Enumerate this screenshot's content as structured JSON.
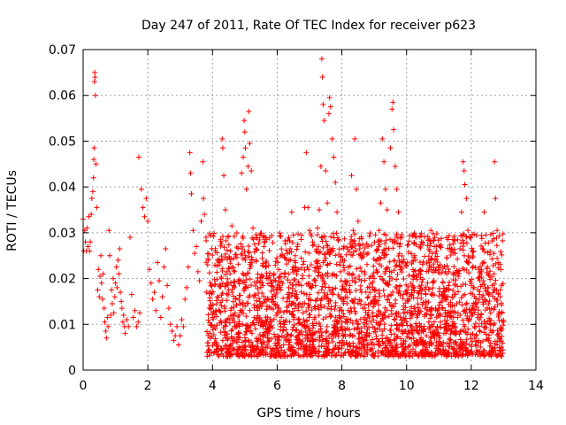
{
  "chart_data": {
    "type": "scatter",
    "title": "Day 247 of 2011, Rate Of TEC Index for receiver p623",
    "xlabel": "GPS time / hours",
    "ylabel": "ROTI / TECUs",
    "xlim": [
      0,
      14
    ],
    "ylim": [
      0,
      0.07
    ],
    "grid": true,
    "marker": "+",
    "color": "#ff0000",
    "xticks": [
      "0",
      "2",
      "4",
      "6",
      "8",
      "10",
      "12",
      "14"
    ],
    "yticks": [
      "0",
      "0.01",
      "0.02",
      "0.03",
      "0.04",
      "0.05",
      "0.06",
      "0.07"
    ],
    "x_range_of_points": [
      0.0,
      13.0
    ],
    "points": [
      [
        0.0,
        0.033
      ],
      [
        0.02,
        0.026
      ],
      [
        0.05,
        0.0305
      ],
      [
        0.07,
        0.028
      ],
      [
        0.1,
        0.026
      ],
      [
        0.12,
        0.031
      ],
      [
        0.15,
        0.027
      ],
      [
        0.17,
        0.0335
      ],
      [
        0.2,
        0.026
      ],
      [
        0.22,
        0.028
      ],
      [
        0.25,
        0.034
      ],
      [
        0.27,
        0.0375
      ],
      [
        0.3,
        0.039
      ],
      [
        0.32,
        0.042
      ],
      [
        0.33,
        0.046
      ],
      [
        0.34,
        0.0485
      ],
      [
        0.35,
        0.063
      ],
      [
        0.36,
        0.065
      ],
      [
        0.37,
        0.064
      ],
      [
        0.38,
        0.06
      ],
      [
        0.4,
        0.045
      ],
      [
        0.42,
        0.0355
      ],
      [
        0.45,
        0.0175
      ],
      [
        0.47,
        0.022
      ],
      [
        0.5,
        0.016
      ],
      [
        0.52,
        0.0205
      ],
      [
        0.55,
        0.025
      ],
      [
        0.57,
        0.019
      ],
      [
        0.6,
        0.0155
      ],
      [
        0.62,
        0.021
      ],
      [
        0.65,
        0.0135
      ],
      [
        0.67,
        0.0105
      ],
      [
        0.7,
        0.0085
      ],
      [
        0.72,
        0.007
      ],
      [
        0.75,
        0.0115
      ],
      [
        0.77,
        0.0095
      ],
      [
        0.8,
        0.0305
      ],
      [
        0.82,
        0.025
      ],
      [
        0.85,
        0.012
      ],
      [
        0.88,
        0.0175
      ],
      [
        0.9,
        0.0145
      ],
      [
        0.93,
        0.02
      ],
      [
        0.95,
        0.0125
      ],
      [
        0.98,
        0.016
      ],
      [
        1.0,
        0.019
      ],
      [
        1.03,
        0.0225
      ],
      [
        1.05,
        0.018
      ],
      [
        1.08,
        0.024
      ],
      [
        1.1,
        0.021
      ],
      [
        1.13,
        0.0265
      ],
      [
        1.15,
        0.017
      ],
      [
        1.18,
        0.015
      ],
      [
        1.2,
        0.0135
      ],
      [
        1.23,
        0.0105
      ],
      [
        1.25,
        0.012
      ],
      [
        1.28,
        0.0095
      ],
      [
        1.3,
        0.008
      ],
      [
        1.35,
        0.011
      ],
      [
        1.4,
        0.0095
      ],
      [
        1.45,
        0.029
      ],
      [
        1.5,
        0.0165
      ],
      [
        1.55,
        0.0115
      ],
      [
        1.6,
        0.013
      ],
      [
        1.65,
        0.0095
      ],
      [
        1.7,
        0.0105
      ],
      [
        1.72,
        0.0465
      ],
      [
        1.75,
        0.0125
      ],
      [
        1.8,
        0.0395
      ],
      [
        1.85,
        0.0355
      ],
      [
        1.9,
        0.0335
      ],
      [
        1.95,
        0.0375
      ],
      [
        2.0,
        0.0325
      ],
      [
        2.05,
        0.022
      ],
      [
        2.1,
        0.019
      ],
      [
        2.15,
        0.0155
      ],
      [
        2.2,
        0.017
      ],
      [
        2.25,
        0.013
      ],
      [
        2.3,
        0.0235
      ],
      [
        2.35,
        0.0195
      ],
      [
        2.4,
        0.0115
      ],
      [
        2.45,
        0.016
      ],
      [
        2.5,
        0.0225
      ],
      [
        2.55,
        0.0265
      ],
      [
        2.6,
        0.0185
      ],
      [
        2.65,
        0.0135
      ],
      [
        2.7,
        0.01
      ],
      [
        2.75,
        0.0085
      ],
      [
        2.8,
        0.0065
      ],
      [
        2.85,
        0.0075
      ],
      [
        2.9,
        0.0095
      ],
      [
        2.95,
        0.0055
      ],
      [
        3.0,
        0.0075
      ],
      [
        3.05,
        0.011
      ],
      [
        3.1,
        0.0095
      ],
      [
        3.15,
        0.0155
      ],
      [
        3.2,
        0.018
      ],
      [
        3.25,
        0.0225
      ],
      [
        3.3,
        0.0475
      ],
      [
        3.32,
        0.043
      ],
      [
        3.35,
        0.0385
      ],
      [
        3.4,
        0.0305
      ],
      [
        3.45,
        0.0255
      ],
      [
        3.5,
        0.027
      ],
      [
        3.55,
        0.0215
      ],
      [
        3.6,
        0.0195
      ],
      [
        3.65,
        0.0325
      ],
      [
        3.7,
        0.0455
      ],
      [
        3.72,
        0.0375
      ],
      [
        3.75,
        0.034
      ],
      [
        3.8,
        0.029
      ],
      [
        3.85,
        0.023
      ],
      [
        3.9,
        0.017
      ],
      [
        3.95,
        0.0135
      ],
      [
        4.0,
        0.0115
      ],
      [
        4.05,
        0.0095
      ],
      [
        4.1,
        0.013
      ],
      [
        4.15,
        0.016
      ],
      [
        4.2,
        0.0235
      ],
      [
        4.25,
        0.0285
      ],
      [
        4.3,
        0.0505
      ],
      [
        4.32,
        0.0485
      ],
      [
        4.35,
        0.0425
      ],
      [
        4.4,
        0.035
      ],
      [
        4.45,
        0.0215
      ],
      [
        4.5,
        0.0175
      ],
      [
        4.55,
        0.026
      ],
      [
        4.6,
        0.0315
      ],
      [
        4.65,
        0.0185
      ],
      [
        4.7,
        0.0125
      ],
      [
        4.75,
        0.0095
      ],
      [
        4.8,
        0.008
      ],
      [
        4.85,
        0.0145
      ],
      [
        4.9,
        0.043
      ],
      [
        4.95,
        0.0465
      ],
      [
        4.98,
        0.0545
      ],
      [
        5.0,
        0.052
      ],
      [
        5.02,
        0.0485
      ],
      [
        5.05,
        0.0395
      ],
      [
        5.1,
        0.0445
      ],
      [
        5.12,
        0.0565
      ],
      [
        5.15,
        0.0495
      ],
      [
        5.2,
        0.0435
      ],
      [
        5.25,
        0.031
      ],
      [
        5.3,
        0.0275
      ],
      [
        5.35,
        0.024
      ],
      [
        5.4,
        0.021
      ],
      [
        5.45,
        0.0135
      ],
      [
        5.5,
        0.0105
      ],
      [
        5.55,
        0.0075
      ],
      [
        5.6,
        0.006
      ],
      [
        5.65,
        0.009
      ],
      [
        5.7,
        0.0115
      ],
      [
        5.75,
        0.0085
      ],
      [
        5.8,
        0.0135
      ],
      [
        5.85,
        0.0155
      ],
      [
        5.9,
        0.0175
      ],
      [
        5.95,
        0.0195
      ],
      [
        6.0,
        0.018
      ],
      [
        6.05,
        0.0125
      ],
      [
        6.1,
        0.0095
      ],
      [
        6.15,
        0.0075
      ],
      [
        6.2,
        0.0055
      ],
      [
        6.25,
        0.0105
      ],
      [
        6.3,
        0.013
      ],
      [
        6.35,
        0.021
      ],
      [
        6.4,
        0.0265
      ],
      [
        6.45,
        0.0345
      ],
      [
        6.5,
        0.0295
      ],
      [
        6.55,
        0.0225
      ],
      [
        6.6,
        0.0165
      ],
      [
        6.65,
        0.011
      ],
      [
        6.7,
        0.0145
      ],
      [
        6.75,
        0.0185
      ],
      [
        6.8,
        0.0125
      ],
      [
        6.85,
        0.0355
      ],
      [
        6.9,
        0.0475
      ],
      [
        6.95,
        0.0355
      ],
      [
        7.0,
        0.0305
      ],
      [
        7.05,
        0.023
      ],
      [
        7.1,
        0.0185
      ],
      [
        7.15,
        0.0195
      ],
      [
        7.2,
        0.026
      ],
      [
        7.25,
        0.031
      ],
      [
        7.3,
        0.035
      ],
      [
        7.35,
        0.0445
      ],
      [
        7.38,
        0.068
      ],
      [
        7.4,
        0.064
      ],
      [
        7.42,
        0.058
      ],
      [
        7.45,
        0.0545
      ],
      [
        7.5,
        0.0435
      ],
      [
        7.55,
        0.0365
      ],
      [
        7.6,
        0.056
      ],
      [
        7.62,
        0.0595
      ],
      [
        7.65,
        0.0575
      ],
      [
        7.7,
        0.0505
      ],
      [
        7.75,
        0.0465
      ],
      [
        7.8,
        0.041
      ],
      [
        7.85,
        0.0345
      ],
      [
        7.9,
        0.0285
      ],
      [
        7.95,
        0.0215
      ],
      [
        8.0,
        0.0175
      ],
      [
        8.05,
        0.0145
      ],
      [
        8.1,
        0.016
      ],
      [
        8.15,
        0.0195
      ],
      [
        8.2,
        0.0225
      ],
      [
        8.25,
        0.0185
      ],
      [
        8.3,
        0.0425
      ],
      [
        8.35,
        0.0305
      ],
      [
        8.4,
        0.0505
      ],
      [
        8.45,
        0.0395
      ],
      [
        8.5,
        0.0325
      ],
      [
        8.55,
        0.0265
      ],
      [
        8.6,
        0.0195
      ],
      [
        8.65,
        0.0135
      ],
      [
        8.7,
        0.0095
      ],
      [
        8.75,
        0.0065
      ],
      [
        8.8,
        0.0055
      ],
      [
        8.85,
        0.008
      ],
      [
        8.9,
        0.0105
      ],
      [
        8.95,
        0.0125
      ],
      [
        9.0,
        0.0145
      ],
      [
        9.05,
        0.0175
      ],
      [
        9.1,
        0.0215
      ],
      [
        9.15,
        0.0305
      ],
      [
        9.2,
        0.0365
      ],
      [
        9.25,
        0.0505
      ],
      [
        9.3,
        0.0455
      ],
      [
        9.35,
        0.0395
      ],
      [
        9.4,
        0.035
      ],
      [
        9.45,
        0.0265
      ],
      [
        9.5,
        0.0485
      ],
      [
        9.55,
        0.057
      ],
      [
        9.58,
        0.0585
      ],
      [
        9.6,
        0.0525
      ],
      [
        9.65,
        0.0445
      ],
      [
        9.7,
        0.0395
      ],
      [
        9.75,
        0.0345
      ],
      [
        9.8,
        0.0275
      ],
      [
        9.85,
        0.0235
      ],
      [
        9.9,
        0.0165
      ],
      [
        9.95,
        0.0125
      ],
      [
        10.0,
        0.0105
      ],
      [
        10.05,
        0.0085
      ],
      [
        10.1,
        0.013
      ],
      [
        10.15,
        0.0165
      ],
      [
        10.2,
        0.0205
      ],
      [
        10.25,
        0.025
      ],
      [
        10.3,
        0.0205
      ],
      [
        10.35,
        0.017
      ],
      [
        10.4,
        0.0125
      ],
      [
        10.45,
        0.0095
      ],
      [
        10.5,
        0.0065
      ],
      [
        10.55,
        0.009
      ],
      [
        10.6,
        0.0145
      ],
      [
        10.65,
        0.019
      ],
      [
        10.7,
        0.0235
      ],
      [
        10.75,
        0.0305
      ],
      [
        10.8,
        0.0255
      ],
      [
        10.85,
        0.0195
      ],
      [
        10.9,
        0.0135
      ],
      [
        10.95,
        0.0095
      ],
      [
        11.0,
        0.0075
      ],
      [
        11.05,
        0.0105
      ],
      [
        11.1,
        0.0135
      ],
      [
        11.15,
        0.017
      ],
      [
        11.2,
        0.0215
      ],
      [
        11.25,
        0.0245
      ],
      [
        11.3,
        0.0185
      ],
      [
        11.35,
        0.0125
      ],
      [
        11.4,
        0.0085
      ],
      [
        11.45,
        0.006
      ],
      [
        11.5,
        0.0095
      ],
      [
        11.55,
        0.0145
      ],
      [
        11.6,
        0.0205
      ],
      [
        11.65,
        0.0265
      ],
      [
        11.7,
        0.0345
      ],
      [
        11.75,
        0.0455
      ],
      [
        11.78,
        0.0435
      ],
      [
        11.8,
        0.0405
      ],
      [
        11.85,
        0.0375
      ],
      [
        11.9,
        0.0305
      ],
      [
        11.95,
        0.0245
      ],
      [
        12.0,
        0.0185
      ],
      [
        12.05,
        0.0135
      ],
      [
        12.1,
        0.0095
      ],
      [
        12.15,
        0.0075
      ],
      [
        12.2,
        0.0115
      ],
      [
        12.25,
        0.0165
      ],
      [
        12.3,
        0.0215
      ],
      [
        12.35,
        0.0265
      ],
      [
        12.4,
        0.0345
      ],
      [
        12.45,
        0.0295
      ],
      [
        12.5,
        0.0225
      ],
      [
        12.55,
        0.0165
      ],
      [
        12.6,
        0.0125
      ],
      [
        12.65,
        0.0185
      ],
      [
        12.7,
        0.0255
      ],
      [
        12.72,
        0.0455
      ],
      [
        12.75,
        0.0375
      ],
      [
        12.8,
        0.0305
      ],
      [
        12.85,
        0.0235
      ],
      [
        12.9,
        0.0175
      ],
      [
        12.95,
        0.0125
      ],
      [
        13.0,
        0.0105
      ]
    ],
    "dense_band": {
      "from_x": 3.8,
      "to_x": 13.0,
      "y_min": 0.003,
      "y_max": 0.03,
      "note": "densely clustered measurements"
    }
  }
}
